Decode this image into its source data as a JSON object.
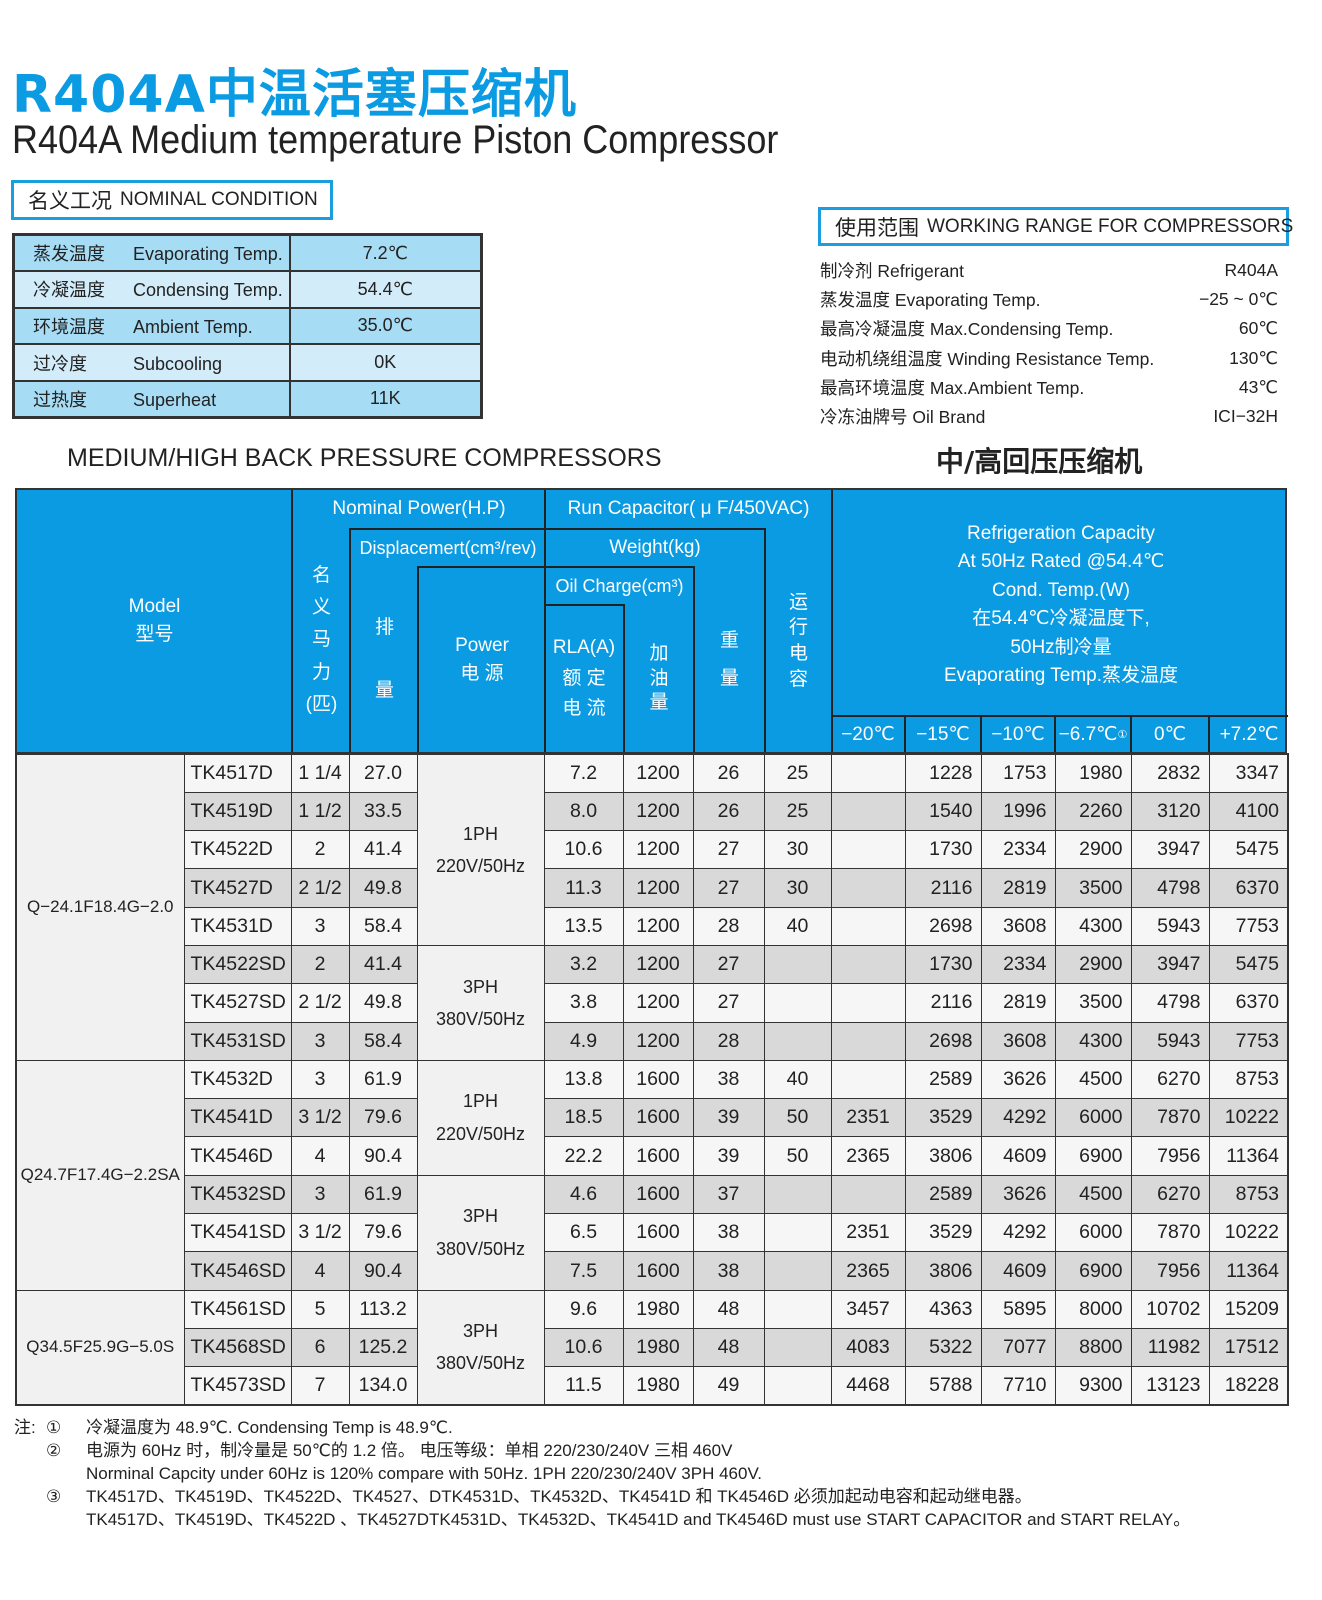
{
  "title_cn": "R404A中温活塞压缩机",
  "title_en": "R404A Medium temperature Piston Compressor",
  "nominal": {
    "label_cn": "名义工况",
    "label_en": "NOMINAL CONDITION",
    "rows": [
      {
        "cn": "蒸发温度",
        "en": "Evaporating Temp.",
        "value": "7.2℃"
      },
      {
        "cn": "冷凝温度",
        "en": "Condensing Temp.",
        "value": "54.4℃"
      },
      {
        "cn": "环境温度",
        "en": "Ambient Temp.",
        "value": "35.0℃"
      },
      {
        "cn": "过冷度",
        "en": "Subcooling",
        "value": "0K"
      },
      {
        "cn": "过热度",
        "en": "Superheat",
        "value": "11K"
      }
    ]
  },
  "working_range": {
    "label_cn": "使用范围",
    "label_en": "WORKING RANGE FOR COMPRESSORS",
    "rows": [
      {
        "label": "制冷剂  Refrigerant",
        "value": "R404A"
      },
      {
        "label": "蒸发温度 Evaporating Temp.",
        "value": "−25 ~ 0℃"
      },
      {
        "label": "最高冷凝温度 Max.Condensing Temp.",
        "value": "60℃"
      },
      {
        "label": "电动机绕组温度 Winding Resistance Temp.",
        "value": "130℃"
      },
      {
        "label": "最高环境温度 Max.Ambient Temp.",
        "value": "43℃"
      },
      {
        "label": "冷冻油牌号  Oil Brand",
        "value": "ICI−32H"
      }
    ]
  },
  "section_en": "MEDIUM/HIGH BACK PRESSURE COMPRESSORS",
  "section_cn": "中/高回压压缩机",
  "header": {
    "model": "Model",
    "model_cn": "型号",
    "nominal_power": "Nominal Power(H.P)",
    "nominal_power_cn": [
      "名",
      "义",
      "马",
      "力",
      "(匹)"
    ],
    "run_capacitor": "Run Capacitor( μ F/450VAC)",
    "displacement": "Displacemert(cm³/rev)",
    "displacement_cn": [
      "排",
      "量"
    ],
    "weight": "Weight(kg)",
    "power": "Power",
    "power_cn": "电 源",
    "oil_charge": "Oil Charge(cm³)",
    "rla": "RLA(A)",
    "rla_cn": [
      "额 定",
      "电 流"
    ],
    "oil_cn": [
      "加",
      "油",
      "量"
    ],
    "weight_cn": [
      "重",
      "量"
    ],
    "cap_cn": [
      "运",
      "行",
      "电",
      "容"
    ],
    "capacity_lines": [
      "Refrigeration Capacity",
      "At 50Hz Rated  @54.4℃",
      "Cond. Temp.(W)",
      "在54.4℃冷凝温度下,",
      "50Hz制冷量",
      "Evaporating Temp.蒸发温度"
    ],
    "temps": [
      "−20℃",
      "−15℃",
      "−10℃",
      "−6.7℃",
      "0℃",
      "+7.2℃"
    ],
    "temp_note_mark": "①"
  },
  "groups": [
    {
      "model_group": "Q−24.1F18.4G−2.0",
      "start": 0,
      "span": 8
    },
    {
      "model_group": "Q24.7F17.4G−2.2SA",
      "start": 8,
      "span": 6
    },
    {
      "model_group": "Q34.5F25.9G−5.0S",
      "start": 14,
      "span": 3
    }
  ],
  "power_groups": [
    {
      "phase": "1PH",
      "supply": "220V/50Hz",
      "start": 0,
      "span": 5
    },
    {
      "phase": "3PH",
      "supply": "380V/50Hz",
      "start": 5,
      "span": 3
    },
    {
      "phase": "1PH",
      "supply": "220V/50Hz",
      "start": 8,
      "span": 3
    },
    {
      "phase": "3PH",
      "supply": "380V/50Hz",
      "start": 11,
      "span": 3
    },
    {
      "phase": "3PH",
      "supply": "380V/50Hz",
      "start": 14,
      "span": 3
    }
  ],
  "rows": [
    {
      "model": "TK4517D",
      "hp": "1 1/4",
      "disp": "27.0",
      "rla": "7.2",
      "oil": "1200",
      "weight": "26",
      "cap": "25",
      "c": [
        "",
        "1228",
        "1753",
        "1980",
        "2832",
        "3347"
      ]
    },
    {
      "model": "TK4519D",
      "hp": "1 1/2",
      "disp": "33.5",
      "rla": "8.0",
      "oil": "1200",
      "weight": "26",
      "cap": "25",
      "c": [
        "",
        "1540",
        "1996",
        "2260",
        "3120",
        "4100"
      ]
    },
    {
      "model": "TK4522D",
      "hp": "2",
      "disp": "41.4",
      "rla": "10.6",
      "oil": "1200",
      "weight": "27",
      "cap": "30",
      "c": [
        "",
        "1730",
        "2334",
        "2900",
        "3947",
        "5475"
      ]
    },
    {
      "model": "TK4527D",
      "hp": "2 1/2",
      "disp": "49.8",
      "rla": "11.3",
      "oil": "1200",
      "weight": "27",
      "cap": "30",
      "c": [
        "",
        "2116",
        "2819",
        "3500",
        "4798",
        "6370"
      ]
    },
    {
      "model": "TK4531D",
      "hp": "3",
      "disp": "58.4",
      "rla": "13.5",
      "oil": "1200",
      "weight": "28",
      "cap": "40",
      "c": [
        "",
        "2698",
        "3608",
        "4300",
        "5943",
        "7753"
      ]
    },
    {
      "model": "TK4522SD",
      "hp": "2",
      "disp": "41.4",
      "rla": "3.2",
      "oil": "1200",
      "weight": "27",
      "cap": "",
      "c": [
        "",
        "1730",
        "2334",
        "2900",
        "3947",
        "5475"
      ]
    },
    {
      "model": "TK4527SD",
      "hp": "2 1/2",
      "disp": "49.8",
      "rla": "3.8",
      "oil": "1200",
      "weight": "27",
      "cap": "",
      "c": [
        "",
        "2116",
        "2819",
        "3500",
        "4798",
        "6370"
      ]
    },
    {
      "model": "TK4531SD",
      "hp": "3",
      "disp": "58.4",
      "rla": "4.9",
      "oil": "1200",
      "weight": "28",
      "cap": "",
      "c": [
        "",
        "2698",
        "3608",
        "4300",
        "5943",
        "7753"
      ]
    },
    {
      "model": "TK4532D",
      "hp": "3",
      "disp": "61.9",
      "rla": "13.8",
      "oil": "1600",
      "weight": "38",
      "cap": "40",
      "c": [
        "",
        "2589",
        "3626",
        "4500",
        "6270",
        "8753"
      ]
    },
    {
      "model": "TK4541D",
      "hp": "3 1/2",
      "disp": "79.6",
      "rla": "18.5",
      "oil": "1600",
      "weight": "39",
      "cap": "50",
      "c": [
        "2351",
        "3529",
        "4292",
        "6000",
        "7870",
        "10222"
      ]
    },
    {
      "model": "TK4546D",
      "hp": "4",
      "disp": "90.4",
      "rla": "22.2",
      "oil": "1600",
      "weight": "39",
      "cap": "50",
      "c": [
        "2365",
        "3806",
        "4609",
        "6900",
        "7956",
        "11364"
      ]
    },
    {
      "model": "TK4532SD",
      "hp": "3",
      "disp": "61.9",
      "rla": "4.6",
      "oil": "1600",
      "weight": "37",
      "cap": "",
      "c": [
        "",
        "2589",
        "3626",
        "4500",
        "6270",
        "8753"
      ]
    },
    {
      "model": "TK4541SD",
      "hp": "3 1/2",
      "disp": "79.6",
      "rla": "6.5",
      "oil": "1600",
      "weight": "38",
      "cap": "",
      "c": [
        "2351",
        "3529",
        "4292",
        "6000",
        "7870",
        "10222"
      ]
    },
    {
      "model": "TK4546SD",
      "hp": "4",
      "disp": "90.4",
      "rla": "7.5",
      "oil": "1600",
      "weight": "38",
      "cap": "",
      "c": [
        "2365",
        "3806",
        "4609",
        "6900",
        "7956",
        "11364"
      ]
    },
    {
      "model": "TK4561SD",
      "hp": "5",
      "disp": "113.2",
      "rla": "9.6",
      "oil": "1980",
      "weight": "48",
      "cap": "",
      "c": [
        "3457",
        "4363",
        "5895",
        "8000",
        "10702",
        "15209"
      ]
    },
    {
      "model": "TK4568SD",
      "hp": "6",
      "disp": "125.2",
      "rla": "10.6",
      "oil": "1980",
      "weight": "48",
      "cap": "",
      "c": [
        "4083",
        "5322",
        "7077",
        "8800",
        "11982",
        "17512"
      ]
    },
    {
      "model": "TK4573SD",
      "hp": "7",
      "disp": "134.0",
      "rla": "11.5",
      "oil": "1980",
      "weight": "49",
      "cap": "",
      "c": [
        "4468",
        "5788",
        "7710",
        "9300",
        "13123",
        "18228"
      ]
    }
  ],
  "notes": {
    "prefix": "注:",
    "items": [
      {
        "mark": "①",
        "lines": [
          "冷凝温度为 48.9℃.   Condensing Temp is 48.9℃."
        ]
      },
      {
        "mark": "②",
        "lines": [
          "电源为 60Hz 时，制冷量是 50℃的 1.2 倍。   电压等级：单相    220/230/240V    三相    460V",
          "Norminal Capcity under 60Hz is 120% compare with 50Hz.    1PH    220/230/240V    3PH    460V."
        ]
      },
      {
        "mark": "③",
        "lines": [
          "TK4517D、TK4519D、TK4522D、TK4527、DTK4531D、TK4532D、TK4541D 和 TK4546D 必须加起动电容和起动继电器。",
          "TK4517D、TK4519D、TK4522D 、TK4527DTK4531D、TK4532D、TK4541D and TK4546D must use START CAPACITOR and START RELAY。"
        ]
      }
    ]
  }
}
